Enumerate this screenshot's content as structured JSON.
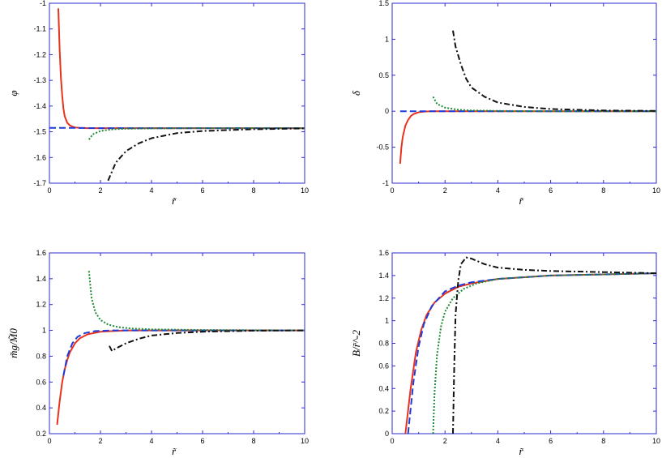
{
  "colors": {
    "frame": "#2b2bd0",
    "red": "#e8321e",
    "blue": "#1e3cdc",
    "green": "#1e8c32",
    "black": "#111111"
  },
  "chart_data": [
    {
      "type": "line",
      "xlabel": "r̃",
      "ylabel": "φ",
      "xlim": [
        0,
        10
      ],
      "ylim": [
        -1.7,
        -1
      ],
      "xticks": [
        "0",
        "2",
        "4",
        "6",
        "8",
        "10"
      ],
      "yticks": [
        "-1",
        "-1.1",
        "-1.2",
        "-1.3",
        "-1.4",
        "-1.5",
        "-1.6",
        "-1.7"
      ],
      "series": [
        {
          "style": "solid-red",
          "x": [
            0.35,
            0.4,
            0.45,
            0.5,
            0.55,
            0.6,
            0.7,
            0.8,
            0.9,
            1.0,
            1.2,
            1.5,
            2.0,
            3.0,
            5.0,
            7.0,
            10.0
          ],
          "y": [
            -1.02,
            -1.18,
            -1.29,
            -1.36,
            -1.41,
            -1.44,
            -1.465,
            -1.475,
            -1.48,
            -1.483,
            -1.485,
            -1.486,
            -1.486,
            -1.486,
            -1.486,
            -1.486,
            -1.486
          ]
        },
        {
          "style": "dashed-blue",
          "x": [
            0,
            1,
            2,
            4,
            6,
            8,
            10
          ],
          "y": [
            -1.485,
            -1.485,
            -1.486,
            -1.486,
            -1.486,
            -1.486,
            -1.486
          ]
        },
        {
          "style": "dotted-green",
          "x": [
            1.55,
            1.7,
            2.0,
            2.5,
            3.0,
            4.0,
            6.0,
            10.0
          ],
          "y": [
            -1.53,
            -1.51,
            -1.497,
            -1.49,
            -1.488,
            -1.487,
            -1.486,
            -1.486
          ]
        },
        {
          "style": "dashdot-black",
          "x": [
            2.3,
            2.6,
            3.0,
            3.5,
            4.0,
            5.0,
            6.0,
            8.0,
            10.0
          ],
          "y": [
            -1.69,
            -1.62,
            -1.575,
            -1.545,
            -1.525,
            -1.505,
            -1.497,
            -1.49,
            -1.487
          ]
        }
      ]
    },
    {
      "type": "line",
      "xlabel": "r̃",
      "ylabel": "δ",
      "xlim": [
        0,
        10
      ],
      "ylim": [
        -1,
        1.5
      ],
      "xticks": [
        "0",
        "2",
        "4",
        "6",
        "8",
        "10"
      ],
      "yticks": [
        "1.5",
        "1",
        "0.5",
        "0",
        "-0.5",
        "-1"
      ],
      "series": [
        {
          "style": "solid-red",
          "x": [
            0.3,
            0.35,
            0.4,
            0.5,
            0.6,
            0.7,
            0.8,
            1.0,
            1.2,
            1.5,
            2.0,
            3.0,
            5.0,
            10.0
          ],
          "y": [
            -0.73,
            -0.5,
            -0.36,
            -0.2,
            -0.12,
            -0.07,
            -0.04,
            -0.015,
            -0.005,
            0,
            0,
            0,
            0,
            0
          ]
        },
        {
          "style": "dashed-blue",
          "x": [
            0.3,
            1,
            2,
            4,
            6,
            8,
            10
          ],
          "y": [
            0,
            0,
            0,
            0,
            0,
            0,
            0
          ]
        },
        {
          "style": "dotted-green",
          "x": [
            1.55,
            1.7,
            2.0,
            2.5,
            3.0,
            4.0,
            6.0,
            10.0
          ],
          "y": [
            0.2,
            0.1,
            0.05,
            0.02,
            0.01,
            0.005,
            0,
            0
          ]
        },
        {
          "style": "dashdot-black",
          "x": [
            2.3,
            2.4,
            2.6,
            2.8,
            3.0,
            3.5,
            4.0,
            5.0,
            6.0,
            8.0,
            10.0
          ],
          "y": [
            1.12,
            0.9,
            0.65,
            0.45,
            0.33,
            0.2,
            0.12,
            0.06,
            0.03,
            0.01,
            0.005
          ]
        }
      ]
    },
    {
      "type": "line",
      "xlabel": "r̃",
      "ylabel": "m̃g/M̃0",
      "xlim": [
        0,
        10
      ],
      "ylim": [
        0.2,
        1.6
      ],
      "xticks": [
        "0",
        "2",
        "4",
        "6",
        "8",
        "10"
      ],
      "yticks": [
        "1.6",
        "1.4",
        "1.2",
        "1",
        "0.8",
        "0.6",
        "0.4",
        "0.2"
      ],
      "series": [
        {
          "style": "solid-red",
          "x": [
            0.3,
            0.4,
            0.5,
            0.6,
            0.7,
            0.8,
            1.0,
            1.2,
            1.5,
            2.0,
            3.0,
            4.0,
            6.0,
            10.0
          ],
          "y": [
            0.27,
            0.45,
            0.6,
            0.7,
            0.77,
            0.83,
            0.9,
            0.94,
            0.97,
            0.99,
            1.0,
            1.0,
            1.0,
            1.0
          ]
        },
        {
          "style": "dashed-blue",
          "x": [
            0.55,
            0.7,
            0.9,
            1.1,
            1.4,
            1.8,
            2.5,
            4.0,
            6.0,
            10.0
          ],
          "y": [
            0.65,
            0.8,
            0.9,
            0.95,
            0.98,
            0.995,
            1.0,
            1.0,
            1.0,
            1.0
          ]
        },
        {
          "style": "dotted-green",
          "x": [
            1.55,
            1.65,
            1.8,
            2.0,
            2.3,
            2.7,
            3.2,
            4.0,
            6.0,
            10.0
          ],
          "y": [
            1.46,
            1.25,
            1.14,
            1.08,
            1.045,
            1.025,
            1.015,
            1.008,
            1.003,
            1.0
          ]
        },
        {
          "style": "dashdot-black",
          "x": [
            2.35,
            2.45,
            2.6,
            3.0,
            3.5,
            4.0,
            5.0,
            6.0,
            8.0,
            10.0
          ],
          "y": [
            0.88,
            0.84,
            0.86,
            0.9,
            0.935,
            0.96,
            0.98,
            0.99,
            0.998,
            1.0
          ]
        }
      ]
    },
    {
      "type": "line",
      "xlabel": "r̃",
      "ylabel": "B/r̃^-2",
      "xlim": [
        0,
        10
      ],
      "ylim": [
        0,
        1.6
      ],
      "xticks": [
        "0",
        "2",
        "4",
        "6",
        "8",
        "10"
      ],
      "yticks": [
        "1.6",
        "1.4",
        "1.2",
        "1",
        "0.8",
        "0.6",
        "0.4",
        "0.2",
        "0"
      ],
      "series": [
        {
          "style": "solid-red",
          "x": [
            0.5,
            0.7,
            0.9,
            1.1,
            1.3,
            1.6,
            2.0,
            2.5,
            3.0,
            4.0,
            6.0,
            8.0,
            10.0
          ],
          "y": [
            0.0,
            0.4,
            0.72,
            0.92,
            1.05,
            1.16,
            1.24,
            1.3,
            1.33,
            1.37,
            1.4,
            1.41,
            1.42
          ]
        },
        {
          "style": "dashed-blue",
          "x": [
            0.6,
            0.8,
            1.0,
            1.2,
            1.5,
            2.0,
            2.5,
            3.0,
            4.0,
            6.0,
            8.0,
            10.0
          ],
          "y": [
            0.0,
            0.45,
            0.77,
            0.97,
            1.13,
            1.26,
            1.31,
            1.34,
            1.37,
            1.4,
            1.41,
            1.42
          ]
        },
        {
          "style": "dotted-green",
          "x": [
            1.55,
            1.6,
            1.7,
            1.85,
            2.0,
            2.3,
            2.7,
            3.2,
            4.0,
            6.0,
            8.0,
            10.0
          ],
          "y": [
            0.0,
            0.35,
            0.7,
            0.95,
            1.08,
            1.2,
            1.28,
            1.33,
            1.37,
            1.4,
            1.41,
            1.42
          ]
        },
        {
          "style": "dashdot-black",
          "x": [
            2.3,
            2.35,
            2.4,
            2.5,
            2.6,
            2.8,
            3.0,
            3.5,
            4.0,
            5.0,
            6.0,
            8.0,
            10.0
          ],
          "y": [
            0.0,
            0.6,
            1.05,
            1.35,
            1.5,
            1.56,
            1.55,
            1.5,
            1.47,
            1.45,
            1.44,
            1.43,
            1.42
          ]
        }
      ]
    }
  ]
}
